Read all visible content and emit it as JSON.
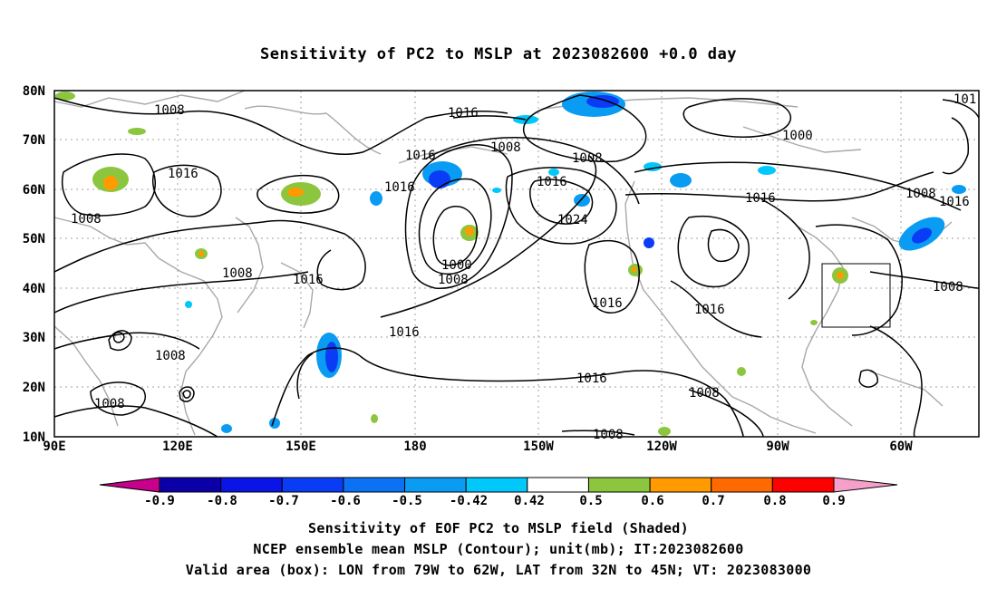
{
  "title": "Sensitivity of PC2 to MSLP at 2023082600 +0.0 day",
  "map": {
    "lat_labels": [
      "80N",
      "70N",
      "60N",
      "50N",
      "40N",
      "30N",
      "20N",
      "10N"
    ],
    "lon_labels": [
      "90E",
      "120E",
      "150E",
      "180",
      "150W",
      "120W",
      "90W",
      "60W"
    ],
    "contour_labels": [
      "1008",
      "1016",
      "1016",
      "1008",
      "1008",
      "1016",
      "1008",
      "1000",
      "1008",
      "1008",
      "1016",
      "1008",
      "1016",
      "1024",
      "1016",
      "1016",
      "1016",
      "1000",
      "1016",
      "1008",
      "1016",
      "1016",
      "1016",
      "101",
      "1008",
      "1008",
      "1008",
      "1008"
    ],
    "valid_box": {
      "lon_from": "79W",
      "lon_to": "62W",
      "lat_from": "32N",
      "lat_to": "45N"
    }
  },
  "colorbar": {
    "labels": [
      "-0.9",
      "-0.8",
      "-0.7",
      "-0.6",
      "-0.5",
      "-0.42",
      "0.42",
      "0.5",
      "0.6",
      "0.7",
      "0.8",
      "0.9"
    ],
    "colors": [
      "#0b00a8",
      "#0a14e6",
      "#0b3cf5",
      "#0b72f5",
      "#0a9cf2",
      "#00c8fa",
      "#ffffff",
      "#8cc63f",
      "#ff9a00",
      "#ff6a00",
      "#ff3c00",
      "#ff0000"
    ],
    "end_colors": {
      "low": "#c8008c",
      "high": "#f5a0c8"
    }
  },
  "captions": {
    "line1": "Sensitivity of EOF PC2 to MSLP field (Shaded)",
    "line2": "NCEP ensemble mean MSLP (Contour); unit(mb); IT:2023082600",
    "line3": "Valid area (box): LON from 79W to 62W, LAT from 32N to 45N; VT: 2023083000"
  }
}
